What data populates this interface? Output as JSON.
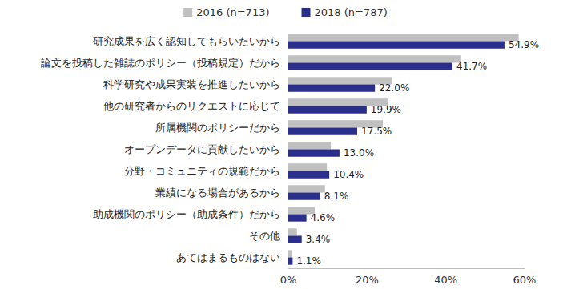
{
  "chart_data": {
    "type": "bar",
    "orientation": "horizontal",
    "legend": "top",
    "grid": false,
    "categories": [
      "研究成果を広く認知してもらいたいから",
      "論文を投稿した雑誌のポリシー（投稿規定）だから",
      "科学研究や成果実装を推進したいから",
      "他の研究者からのリクエストに応じて",
      "所属機関のポリシーだから",
      "オープンデータに貢献したいから",
      "分野・コミュニティの規範だから",
      "業績になる場合があるから",
      "助成機関のポリシー（助成条件）だから",
      "その他",
      "あてはまるものはない"
    ],
    "series": [
      {
        "name": "2016 (n=713)",
        "color": "#c0c0c0",
        "values": [
          58.5,
          43.9,
          26.4,
          25.4,
          24.0,
          10.8,
          9.8,
          9.3,
          6.7,
          2.2,
          1.0
        ]
      },
      {
        "name": "2018 (n=787)",
        "color": "#2b2f8c",
        "data_labels": true,
        "values": [
          54.9,
          41.7,
          22.0,
          19.9,
          17.5,
          13.0,
          10.4,
          8.1,
          4.6,
          3.4,
          1.1
        ],
        "value_labels": [
          "54.9%",
          "41.7%",
          "22.0%",
          "19.9%",
          "17.5%",
          "13.0%",
          "10.4%",
          "8.1%",
          "4.6%",
          "3.4%",
          "1.1%"
        ]
      }
    ],
    "xlim": [
      0,
      60
    ],
    "xticks": [
      {
        "value": 0,
        "label": "0%"
      },
      {
        "value": 20,
        "label": "20%"
      },
      {
        "value": 40,
        "label": "40%"
      },
      {
        "value": 60,
        "label": "60%"
      }
    ]
  }
}
